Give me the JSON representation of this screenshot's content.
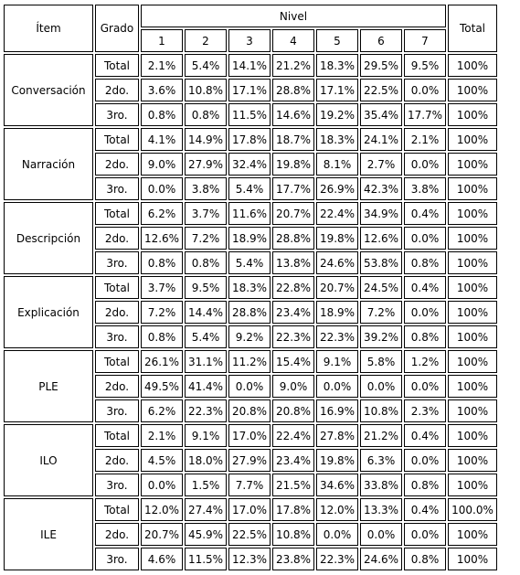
{
  "header": {
    "item": "Ítem",
    "grado": "Grado",
    "nivel": "Nivel",
    "levels": [
      "1",
      "2",
      "3",
      "4",
      "5",
      "6",
      "7"
    ],
    "total": "Total"
  },
  "sections": [
    {
      "item": "Conversación",
      "rows": [
        {
          "grado": "Total",
          "values": [
            "2.1%",
            "5.4%",
            "14.1%",
            "21.2%",
            "18.3%",
            "29.5%",
            "9.5%"
          ],
          "total": "100%"
        },
        {
          "grado": "2do.",
          "values": [
            "3.6%",
            "10.8%",
            "17.1%",
            "28.8%",
            "17.1%",
            "22.5%",
            "0.0%"
          ],
          "total": "100%"
        },
        {
          "grado": "3ro.",
          "values": [
            "0.8%",
            "0.8%",
            "11.5%",
            "14.6%",
            "19.2%",
            "35.4%",
            "17.7%"
          ],
          "total": "100%"
        }
      ]
    },
    {
      "item": "Narración",
      "rows": [
        {
          "grado": "Total",
          "values": [
            "4.1%",
            "14.9%",
            "17.8%",
            "18.7%",
            "18.3%",
            "24.1%",
            "2.1%"
          ],
          "total": "100%"
        },
        {
          "grado": "2do.",
          "values": [
            "9.0%",
            "27.9%",
            "32.4%",
            "19.8%",
            "8.1%",
            "2.7%",
            "0.0%"
          ],
          "total": "100%"
        },
        {
          "grado": "3ro.",
          "values": [
            "0.0%",
            "3.8%",
            "5.4%",
            "17.7%",
            "26.9%",
            "42.3%",
            "3.8%"
          ],
          "total": "100%"
        }
      ]
    },
    {
      "item": "Descripción",
      "rows": [
        {
          "grado": "Total",
          "values": [
            "6.2%",
            "3.7%",
            "11.6%",
            "20.7%",
            "22.4%",
            "34.9%",
            "0.4%"
          ],
          "total": "100%"
        },
        {
          "grado": "2do.",
          "values": [
            "12.6%",
            "7.2%",
            "18.9%",
            "28.8%",
            "19.8%",
            "12.6%",
            "0.0%"
          ],
          "total": "100%"
        },
        {
          "grado": "3ro.",
          "values": [
            "0.8%",
            "0.8%",
            "5.4%",
            "13.8%",
            "24.6%",
            "53.8%",
            "0.8%"
          ],
          "total": "100%"
        }
      ]
    },
    {
      "item": "Explicación",
      "rows": [
        {
          "grado": "Total",
          "values": [
            "3.7%",
            "9.5%",
            "18.3%",
            "22.8%",
            "20.7%",
            "24.5%",
            "0.4%"
          ],
          "total": "100%"
        },
        {
          "grado": "2do.",
          "values": [
            "7.2%",
            "14.4%",
            "28.8%",
            "23.4%",
            "18.9%",
            "7.2%",
            "0.0%"
          ],
          "total": "100%"
        },
        {
          "grado": "3ro.",
          "values": [
            "0.8%",
            "5.4%",
            "9.2%",
            "22.3%",
            "22.3%",
            "39.2%",
            "0.8%"
          ],
          "total": "100%"
        }
      ]
    },
    {
      "item": "PLE",
      "rows": [
        {
          "grado": "Total",
          "values": [
            "26.1%",
            "31.1%",
            "11.2%",
            "15.4%",
            "9.1%",
            "5.8%",
            "1.2%"
          ],
          "total": "100%"
        },
        {
          "grado": "2do.",
          "values": [
            "49.5%",
            "41.4%",
            "0.0%",
            "9.0%",
            "0.0%",
            "0.0%",
            "0.0%"
          ],
          "total": "100%"
        },
        {
          "grado": "3ro.",
          "values": [
            "6.2%",
            "22.3%",
            "20.8%",
            "20.8%",
            "16.9%",
            "10.8%",
            "2.3%"
          ],
          "total": "100%"
        }
      ]
    },
    {
      "item": "ILO",
      "rows": [
        {
          "grado": "Total",
          "values": [
            "2.1%",
            "9.1%",
            "17.0%",
            "22.4%",
            "27.8%",
            "21.2%",
            "0.4%"
          ],
          "total": "100%"
        },
        {
          "grado": "2do.",
          "values": [
            "4.5%",
            "18.0%",
            "27.9%",
            "23.4%",
            "19.8%",
            "6.3%",
            "0.0%"
          ],
          "total": "100%"
        },
        {
          "grado": "3ro.",
          "values": [
            "0.0%",
            "1.5%",
            "7.7%",
            "21.5%",
            "34.6%",
            "33.8%",
            "0.8%"
          ],
          "total": "100%"
        }
      ]
    },
    {
      "item": "ILE",
      "rows": [
        {
          "grado": "Total",
          "values": [
            "12.0%",
            "27.4%",
            "17.0%",
            "17.8%",
            "12.0%",
            "13.3%",
            "0.4%"
          ],
          "total": "100.0%"
        },
        {
          "grado": "2do.",
          "values": [
            "20.7%",
            "45.9%",
            "22.5%",
            "10.8%",
            "0.0%",
            "0.0%",
            "0.0%"
          ],
          "total": "100%"
        },
        {
          "grado": "3ro.",
          "values": [
            "4.6%",
            "11.5%",
            "12.3%",
            "23.8%",
            "22.3%",
            "24.6%",
            "0.8%"
          ],
          "total": "100%"
        }
      ]
    }
  ]
}
